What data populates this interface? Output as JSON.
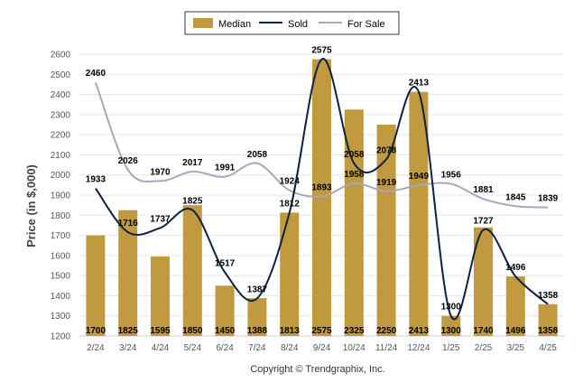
{
  "chart_data": {
    "type": "bar",
    "categories": [
      "2/24",
      "3/24",
      "4/24",
      "5/24",
      "6/24",
      "7/24",
      "8/24",
      "9/24",
      "10/24",
      "11/24",
      "12/24",
      "1/25",
      "2/25",
      "3/25",
      "4/25"
    ],
    "series": [
      {
        "name": "Median",
        "type": "bar",
        "color": "#c19a3f",
        "values": [
          1700,
          1825,
          1595,
          1850,
          1450,
          1388,
          1813,
          2575,
          2325,
          2250,
          2413,
          1300,
          1740,
          1496,
          1358
        ]
      },
      {
        "name": "Sold",
        "type": "line",
        "color": "#0d2240",
        "values": [
          1933,
          1716,
          1737,
          1825,
          1517,
          1387,
          1812,
          2575,
          2058,
          2078,
          2413,
          1300,
          1727,
          1496,
          1358
        ]
      },
      {
        "name": "For Sale",
        "type": "line",
        "color": "#a4aabd",
        "values": [
          2460,
          2026,
          1970,
          2017,
          1991,
          2058,
          1924,
          1893,
          1958,
          1919,
          1949,
          1956,
          1881,
          1845,
          1839
        ]
      }
    ],
    "ylabel": "Price (in $,000)",
    "xlabel": "",
    "ylim": [
      1200,
      2600
    ],
    "yticks": [
      1200,
      1300,
      1400,
      1500,
      1600,
      1700,
      1800,
      1900,
      2000,
      2100,
      2200,
      2300,
      2400,
      2500,
      2600
    ],
    "grid": true,
    "legend": "top-center"
  },
  "footer": {
    "copyright": "Copyright © Trendgraphix, Inc."
  }
}
